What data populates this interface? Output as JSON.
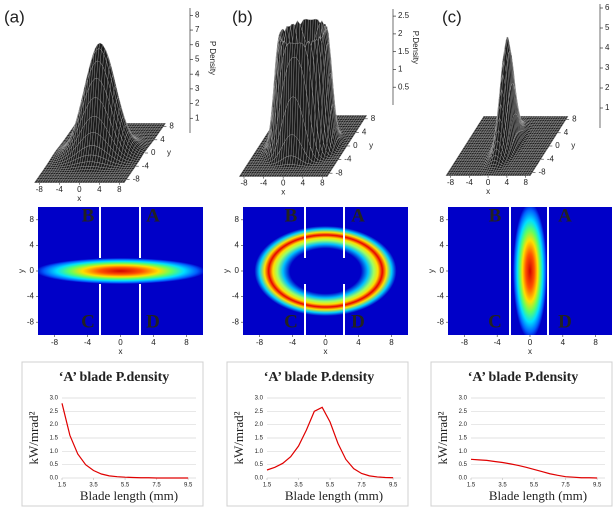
{
  "chart_data": [
    {
      "type": "surface",
      "panel_label": "(a)",
      "xlabel": "x",
      "ylabel": "y",
      "zlabel": "P Density",
      "xlim": [
        -9,
        9
      ],
      "ylim": [
        -9,
        9
      ],
      "zlim": [
        0,
        8.5
      ],
      "xticks": [
        -8,
        -4,
        0,
        4,
        8
      ],
      "yticks": [
        -8,
        -4,
        0,
        4,
        8
      ],
      "zticks": [
        1,
        2,
        3,
        4,
        5,
        6,
        7,
        8
      ]
    },
    {
      "type": "surface",
      "panel_label": "(b)",
      "xlabel": "x",
      "ylabel": "y",
      "zlabel": "P.Density",
      "xlim": [
        -9,
        9
      ],
      "ylim": [
        -9,
        9
      ],
      "zlim": [
        0,
        2.7
      ],
      "xticks": [
        -8,
        -4,
        0,
        4,
        8
      ],
      "yticks": [
        -8,
        -4,
        0,
        4,
        8
      ],
      "zticks": [
        0.5,
        1,
        1.5,
        2,
        2.5
      ]
    },
    {
      "type": "surface",
      "panel_label": "(c)",
      "xlabel": "x",
      "ylabel": "y",
      "xlim": [
        -9,
        9
      ],
      "ylim": [
        -9,
        9
      ],
      "zlim": [
        0,
        6.2
      ],
      "xticks": [
        -8,
        -4,
        0,
        4,
        8
      ],
      "yticks": [
        -8,
        -4,
        0,
        4,
        8
      ],
      "zticks": [
        1,
        2,
        3,
        4,
        5,
        6
      ]
    },
    {
      "type": "heatmap",
      "xlabel": "x",
      "ylabel": "y",
      "xlim": [
        -10,
        10
      ],
      "ylim": [
        -10,
        10
      ],
      "xticks": [
        -8,
        -4,
        0,
        4,
        8
      ],
      "yticks": [
        -8,
        -4,
        0,
        4,
        8
      ],
      "region_labels": [
        "B",
        "A",
        "C",
        "D"
      ]
    },
    {
      "type": "heatmap",
      "xlabel": "x",
      "ylabel": "y",
      "xlim": [
        -10,
        10
      ],
      "ylim": [
        -10,
        10
      ],
      "xticks": [
        -8,
        -4,
        0,
        4,
        8
      ],
      "yticks": [
        -8,
        -4,
        0,
        4,
        8
      ],
      "region_labels": [
        "B",
        "A",
        "C",
        "D"
      ]
    },
    {
      "type": "heatmap",
      "xlabel": "x",
      "ylabel": "y",
      "xlim": [
        -10,
        10
      ],
      "ylim": [
        -10,
        10
      ],
      "xticks": [
        -8,
        -4,
        0,
        4,
        8
      ],
      "yticks": [
        -8,
        -4,
        0,
        4,
        8
      ],
      "region_labels": [
        "B",
        "A",
        "C",
        "D"
      ]
    },
    {
      "type": "line",
      "title": "‘A’ blade P.density",
      "xlabel": "Blade length (mm)",
      "ylabel": "kW/mrad²",
      "x": [
        1.5,
        2,
        2.5,
        3,
        3.5,
        4,
        4.5,
        5,
        5.5,
        6,
        6.5,
        7,
        7.5,
        8,
        8.5,
        9,
        9.5
      ],
      "series": [
        {
          "color": "#e00000",
          "values": [
            2.8,
            1.6,
            0.9,
            0.5,
            0.28,
            0.15,
            0.08,
            0.05,
            0.03,
            0.02,
            0.01,
            0.01,
            0,
            0,
            0,
            0,
            0
          ]
        }
      ],
      "xlim": [
        1.5,
        10
      ],
      "ylim": [
        0,
        3
      ],
      "xticks": [
        1.5,
        3.5,
        5.5,
        7.5,
        9.5
      ],
      "yticks": [
        {
          "value": 0,
          "label": "0.0"
        },
        0.5,
        {
          "value": 1,
          "label": "1.0"
        },
        1.5,
        {
          "value": 2,
          "label": "2.0"
        },
        2.5,
        {
          "value": 3,
          "label": "3.0"
        }
      ],
      "grid": true
    },
    {
      "type": "line",
      "title": "‘A’ blade P.density",
      "xlabel": "Blade length (mm)",
      "ylabel": "kW/mrad²",
      "x": [
        1.5,
        2,
        2.5,
        3,
        3.5,
        4,
        4.5,
        5,
        5.5,
        6,
        6.5,
        7,
        7.5,
        8,
        8.5,
        9,
        9.5
      ],
      "series": [
        {
          "color": "#e00000",
          "values": [
            0.3,
            0.4,
            0.55,
            0.8,
            1.2,
            1.8,
            2.5,
            2.65,
            2.1,
            1.3,
            0.7,
            0.35,
            0.17,
            0.08,
            0.04,
            0.02,
            0.01
          ]
        }
      ],
      "xlim": [
        1.5,
        10
      ],
      "ylim": [
        0,
        3
      ],
      "xticks": [
        1.5,
        3.5,
        5.5,
        7.5,
        9.5
      ],
      "yticks": [
        {
          "value": 0,
          "label": "0.0"
        },
        0.5,
        {
          "value": 1,
          "label": "1.0"
        },
        1.5,
        {
          "value": 2,
          "label": "2.0"
        },
        2.5,
        {
          "value": 3,
          "label": "3.0"
        }
      ],
      "grid": true
    },
    {
      "type": "line",
      "title": "‘A’ blade P.density",
      "xlabel": "Blade length (mm)",
      "ylabel": "kW/mrad²",
      "x": [
        1.5,
        2,
        2.5,
        3,
        3.5,
        4,
        4.5,
        5,
        5.5,
        6,
        6.5,
        7,
        7.5,
        8,
        8.5,
        9,
        9.5
      ],
      "series": [
        {
          "color": "#e00000",
          "values": [
            0.7,
            0.68,
            0.66,
            0.62,
            0.58,
            0.53,
            0.47,
            0.4,
            0.32,
            0.24,
            0.16,
            0.1,
            0.05,
            0.03,
            0.01,
            0.01,
            0
          ]
        }
      ],
      "xlim": [
        1.5,
        10
      ],
      "ylim": [
        0,
        3
      ],
      "xticks": [
        1.5,
        3.5,
        5.5,
        7.5,
        9.5
      ],
      "yticks": [
        {
          "value": 0,
          "label": "0.0"
        },
        0.5,
        {
          "value": 1,
          "label": "1.0"
        },
        1.5,
        {
          "value": 2,
          "label": "2.0"
        },
        2.5,
        {
          "value": 3,
          "label": "3.0"
        }
      ],
      "grid": true
    }
  ]
}
